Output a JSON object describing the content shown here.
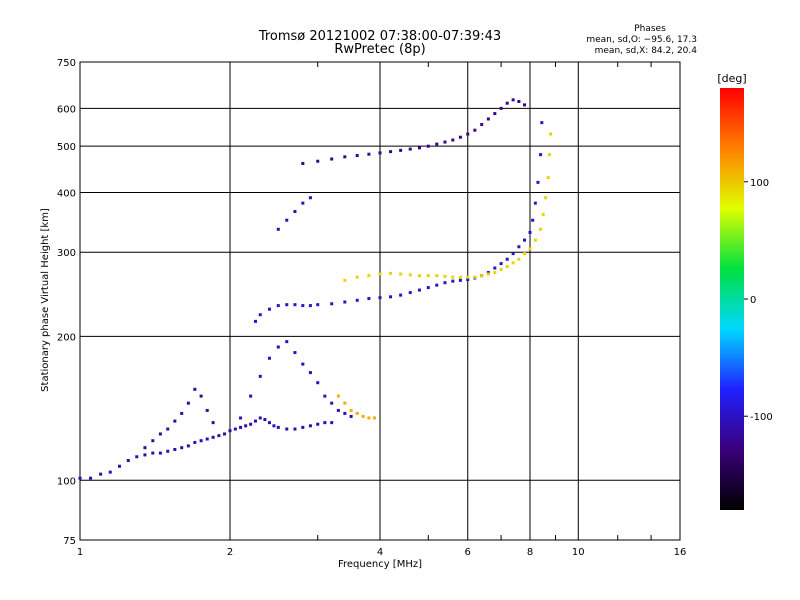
{
  "chart_data": {
    "type": "scatter",
    "title": "Tromsø 20121002 07:38:00-07:39:43",
    "subtitle": "RwPretec (8p)",
    "xlabel": "Frequency [MHz]",
    "ylabel": "Stationary phase Virtual Height [km]",
    "x_scale": "log2",
    "y_scale": "log",
    "xlim": [
      1,
      16
    ],
    "ylim": [
      75,
      750
    ],
    "x_ticks": [
      1,
      2,
      4,
      6,
      8,
      10,
      16
    ],
    "y_ticks": [
      75,
      100,
      200,
      300,
      400,
      500,
      600,
      750
    ],
    "grid": true,
    "phases_box": {
      "heading": "Phases",
      "line_o": "mean, sd,O: −95.6, 17.3",
      "line_x": "mean, sd,X:  84.2, 20.4"
    },
    "colorbar": {
      "label": "[deg]",
      "range": [
        -180,
        180
      ],
      "ticks": [
        100,
        0,
        -100
      ],
      "colors": [
        "#000000",
        "#3a007a",
        "#2020ff",
        "#00d8ff",
        "#00e040",
        "#e0ff00",
        "#ff8000",
        "#ff0000"
      ]
    },
    "series": [
      {
        "x": [
          1.0,
          1.05,
          1.1,
          1.15,
          1.2,
          1.25,
          1.3,
          1.35,
          1.4,
          1.45,
          1.5,
          1.55,
          1.6,
          1.65,
          1.7,
          1.75,
          1.8,
          1.85,
          1.9,
          1.95,
          2.0,
          2.05,
          2.1,
          2.15,
          2.2,
          2.25,
          2.3,
          2.35,
          2.4,
          2.45,
          2.5,
          2.6,
          2.7,
          2.8,
          2.9,
          3.0,
          3.1,
          3.2
        ],
        "y": [
          101,
          101,
          103,
          104,
          107,
          110,
          112,
          113,
          114,
          114,
          115,
          116,
          117,
          118,
          120,
          121,
          122,
          123,
          124,
          125,
          127,
          128,
          129,
          130,
          131,
          133,
          135,
          134,
          132,
          130,
          129,
          128,
          128,
          129,
          130,
          131,
          132,
          132
        ],
        "phase": -110
      },
      {
        "x": [
          1.35,
          1.4,
          1.45,
          1.5,
          1.55,
          1.6,
          1.65,
          1.7,
          1.75,
          1.8,
          1.85
        ],
        "y": [
          117,
          121,
          125,
          128,
          133,
          138,
          145,
          155,
          150,
          140,
          132
        ],
        "phase": -115
      },
      {
        "x": [
          2.1,
          2.2,
          2.3,
          2.4,
          2.5,
          2.6,
          2.7,
          2.8,
          2.9,
          3.0,
          3.1,
          3.2,
          3.3,
          3.4,
          3.5
        ],
        "y": [
          135,
          150,
          165,
          180,
          190,
          195,
          185,
          175,
          168,
          160,
          150,
          145,
          140,
          138,
          136
        ],
        "phase": -105
      },
      {
        "x": [
          2.25,
          2.3,
          2.4,
          2.5,
          2.6,
          2.7,
          2.8,
          2.9,
          3.0,
          3.2,
          3.4,
          3.6,
          3.8,
          4.0,
          4.2,
          4.4,
          4.6,
          4.8,
          5.0,
          5.2,
          5.4,
          5.6,
          5.8,
          6.0,
          6.2,
          6.4,
          6.6,
          6.8,
          7.0,
          7.2,
          7.4,
          7.6,
          7.8,
          8.0,
          8.1,
          8.2,
          8.3,
          8.4,
          8.45
        ],
        "y": [
          215,
          222,
          228,
          232,
          233,
          233,
          232,
          232,
          233,
          234,
          236,
          238,
          240,
          241,
          242,
          244,
          247,
          250,
          253,
          256,
          259,
          261,
          262,
          263,
          265,
          268,
          272,
          278,
          284,
          290,
          298,
          308,
          318,
          330,
          350,
          380,
          420,
          480,
          560
        ],
        "phase": -100
      },
      {
        "x": [
          3.4,
          3.6,
          3.8,
          4.0,
          4.2,
          4.4,
          4.6,
          4.8,
          5.0,
          5.2,
          5.4,
          5.6,
          5.8,
          6.0,
          6.2,
          6.4,
          6.6,
          6.8,
          7.0,
          7.2,
          7.4,
          7.6,
          7.8,
          8.0,
          8.2,
          8.4,
          8.5,
          8.6,
          8.7,
          8.75,
          8.8
        ],
        "y": [
          262,
          266,
          268,
          270,
          271,
          270,
          269,
          268,
          268,
          268,
          267,
          266,
          266,
          266,
          266,
          268,
          270,
          272,
          276,
          280,
          285,
          290,
          298,
          305,
          318,
          335,
          360,
          390,
          430,
          480,
          530
        ],
        "phase": 95
      },
      {
        "x": [
          2.8,
          3.0,
          3.2,
          3.4,
          3.6,
          3.8,
          4.0,
          4.2,
          4.4,
          4.6,
          4.8,
          5.0,
          5.2,
          5.4,
          5.6,
          5.8,
          6.0,
          6.2,
          6.4,
          6.6,
          6.8,
          7.0,
          7.2,
          7.4,
          7.6,
          7.8
        ],
        "y": [
          460,
          465,
          470,
          475,
          478,
          481,
          484,
          487,
          490,
          493,
          496,
          500,
          505,
          510,
          515,
          522,
          530,
          540,
          555,
          570,
          585,
          600,
          615,
          625,
          620,
          610
        ],
        "phase": -120
      },
      {
        "x": [
          2.5,
          2.6,
          2.7,
          2.8,
          2.9
        ],
        "y": [
          335,
          350,
          365,
          380,
          390
        ],
        "phase": -105
      },
      {
        "x": [
          3.3,
          3.4,
          3.5,
          3.6,
          3.7,
          3.8,
          3.9
        ],
        "y": [
          150,
          145,
          140,
          138,
          136,
          135,
          135
        ],
        "phase": 110
      }
    ]
  }
}
